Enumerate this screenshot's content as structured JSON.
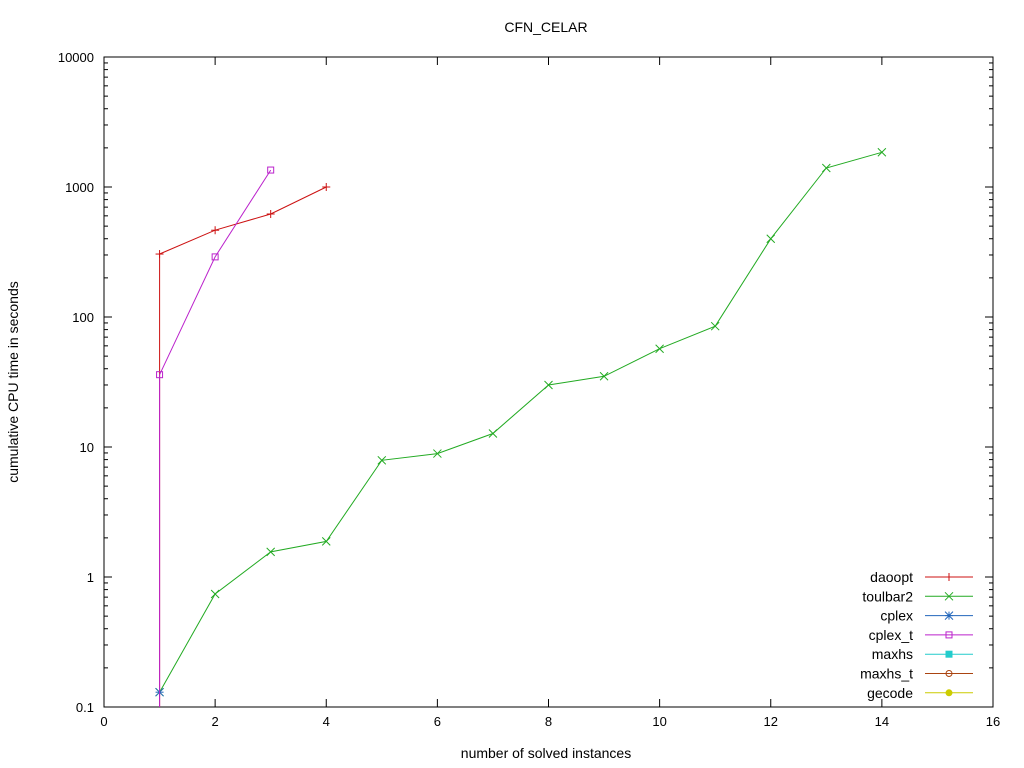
{
  "chart_data": {
    "type": "line",
    "title": "CFN_CELAR",
    "xlabel": "number of solved instances",
    "ylabel": "cumulative CPU time in seconds",
    "xlim": [
      0,
      16
    ],
    "ylim": [
      0.1,
      10000
    ],
    "yscale": "log",
    "xticks": [
      0,
      2,
      4,
      6,
      8,
      10,
      12,
      14,
      16
    ],
    "xtick_labels": [
      "0",
      "2",
      "4",
      "6",
      "8",
      "10",
      "12",
      "14",
      "16"
    ],
    "yticks": [
      0.1,
      1,
      10,
      100,
      1000,
      10000
    ],
    "ytick_labels": [
      "0.1",
      "1",
      "10",
      "100",
      "1000",
      "10000"
    ],
    "grid": false,
    "legend_position": "bottom-right",
    "series": [
      {
        "name": "daoopt",
        "color": "#cc1111",
        "marker": "plus",
        "x": [
          1,
          1,
          2,
          3,
          4
        ],
        "y": [
          0.1,
          305,
          465,
          620,
          1000
        ]
      },
      {
        "name": "toulbar2",
        "color": "#22aa22",
        "marker": "cross",
        "x": [
          1,
          2,
          3,
          4,
          5,
          6,
          7,
          8,
          9,
          10,
          11,
          12,
          13,
          14
        ],
        "y": [
          0.13,
          0.74,
          1.56,
          1.88,
          7.9,
          8.9,
          12.7,
          30,
          35,
          57,
          85,
          400,
          1400,
          1850
        ]
      },
      {
        "name": "cplex",
        "color": "#2266bb",
        "marker": "star",
        "x": [
          1
        ],
        "y": [
          0.13
        ]
      },
      {
        "name": "cplex_t",
        "color": "#bb22cc",
        "marker": "square",
        "x": [
          1,
          1,
          2,
          3
        ],
        "y": [
          0.1,
          36,
          290,
          1350
        ]
      },
      {
        "name": "maxhs",
        "color": "#22cccc",
        "marker": "filled-square",
        "x": [],
        "y": []
      },
      {
        "name": "maxhs_t",
        "color": "#aa4411",
        "marker": "circle",
        "x": [],
        "y": []
      },
      {
        "name": "gecode",
        "color": "#cccc00",
        "marker": "filled-circle",
        "x": [],
        "y": []
      }
    ]
  }
}
